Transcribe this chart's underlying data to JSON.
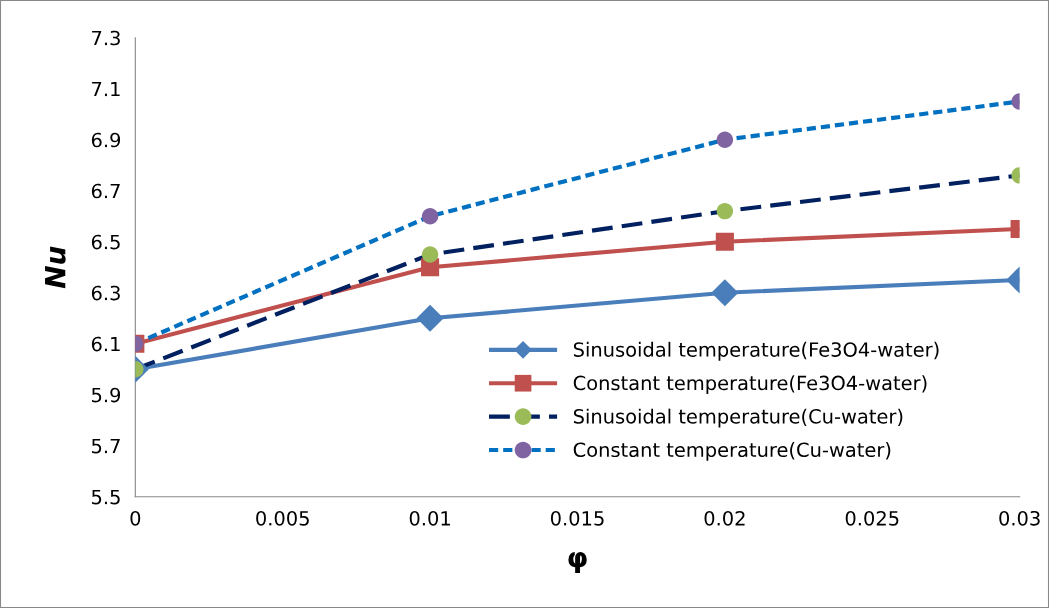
{
  "chart_data": {
    "type": "line",
    "xlabel": "φ",
    "ylabel": "Nu",
    "x": [
      0,
      0.01,
      0.02,
      0.03
    ],
    "xlim": [
      0,
      0.03
    ],
    "xticks": [
      0,
      0.005,
      0.01,
      0.015,
      0.02,
      0.025,
      0.03
    ],
    "ylim": [
      5.5,
      7.3
    ],
    "yticks": [
      5.5,
      5.7,
      5.9,
      6.1,
      6.3,
      6.5,
      6.7,
      6.9,
      7.1,
      7.3
    ],
    "grid": false,
    "legend": "bottom right",
    "series": [
      {
        "name": "Sinusoidal temperature(Fe3O4-water)",
        "color": "#4a7ebb",
        "marker": "diamond",
        "line_style": "solid",
        "values": [
          6.0,
          6.2,
          6.3,
          6.35
        ]
      },
      {
        "name": "Constant temperature(Fe3O4-water)",
        "color": "#c0504d",
        "marker": "square",
        "line_style": "solid",
        "values": [
          6.1,
          6.4,
          6.5,
          6.55
        ]
      },
      {
        "name": "Sinusoidal temperature(Cu-water)",
        "color": "#002060",
        "colors": [
          "#9bbb59",
          "#9bbb59",
          "#9bbb59",
          "#9bbb59"
        ],
        "marker": "circle",
        "line_style": "dashed",
        "values": [
          6.0,
          6.45,
          6.62,
          6.76
        ]
      },
      {
        "name": "Constant temperature(Cu-water)",
        "color": "#0070c0",
        "colors": [
          "#8064a2",
          "#8064a2",
          "#8064a2",
          "#8064a2"
        ],
        "marker": "circle",
        "line_style": "dotted",
        "values": [
          6.1,
          6.6,
          6.9,
          7.05
        ]
      }
    ]
  }
}
